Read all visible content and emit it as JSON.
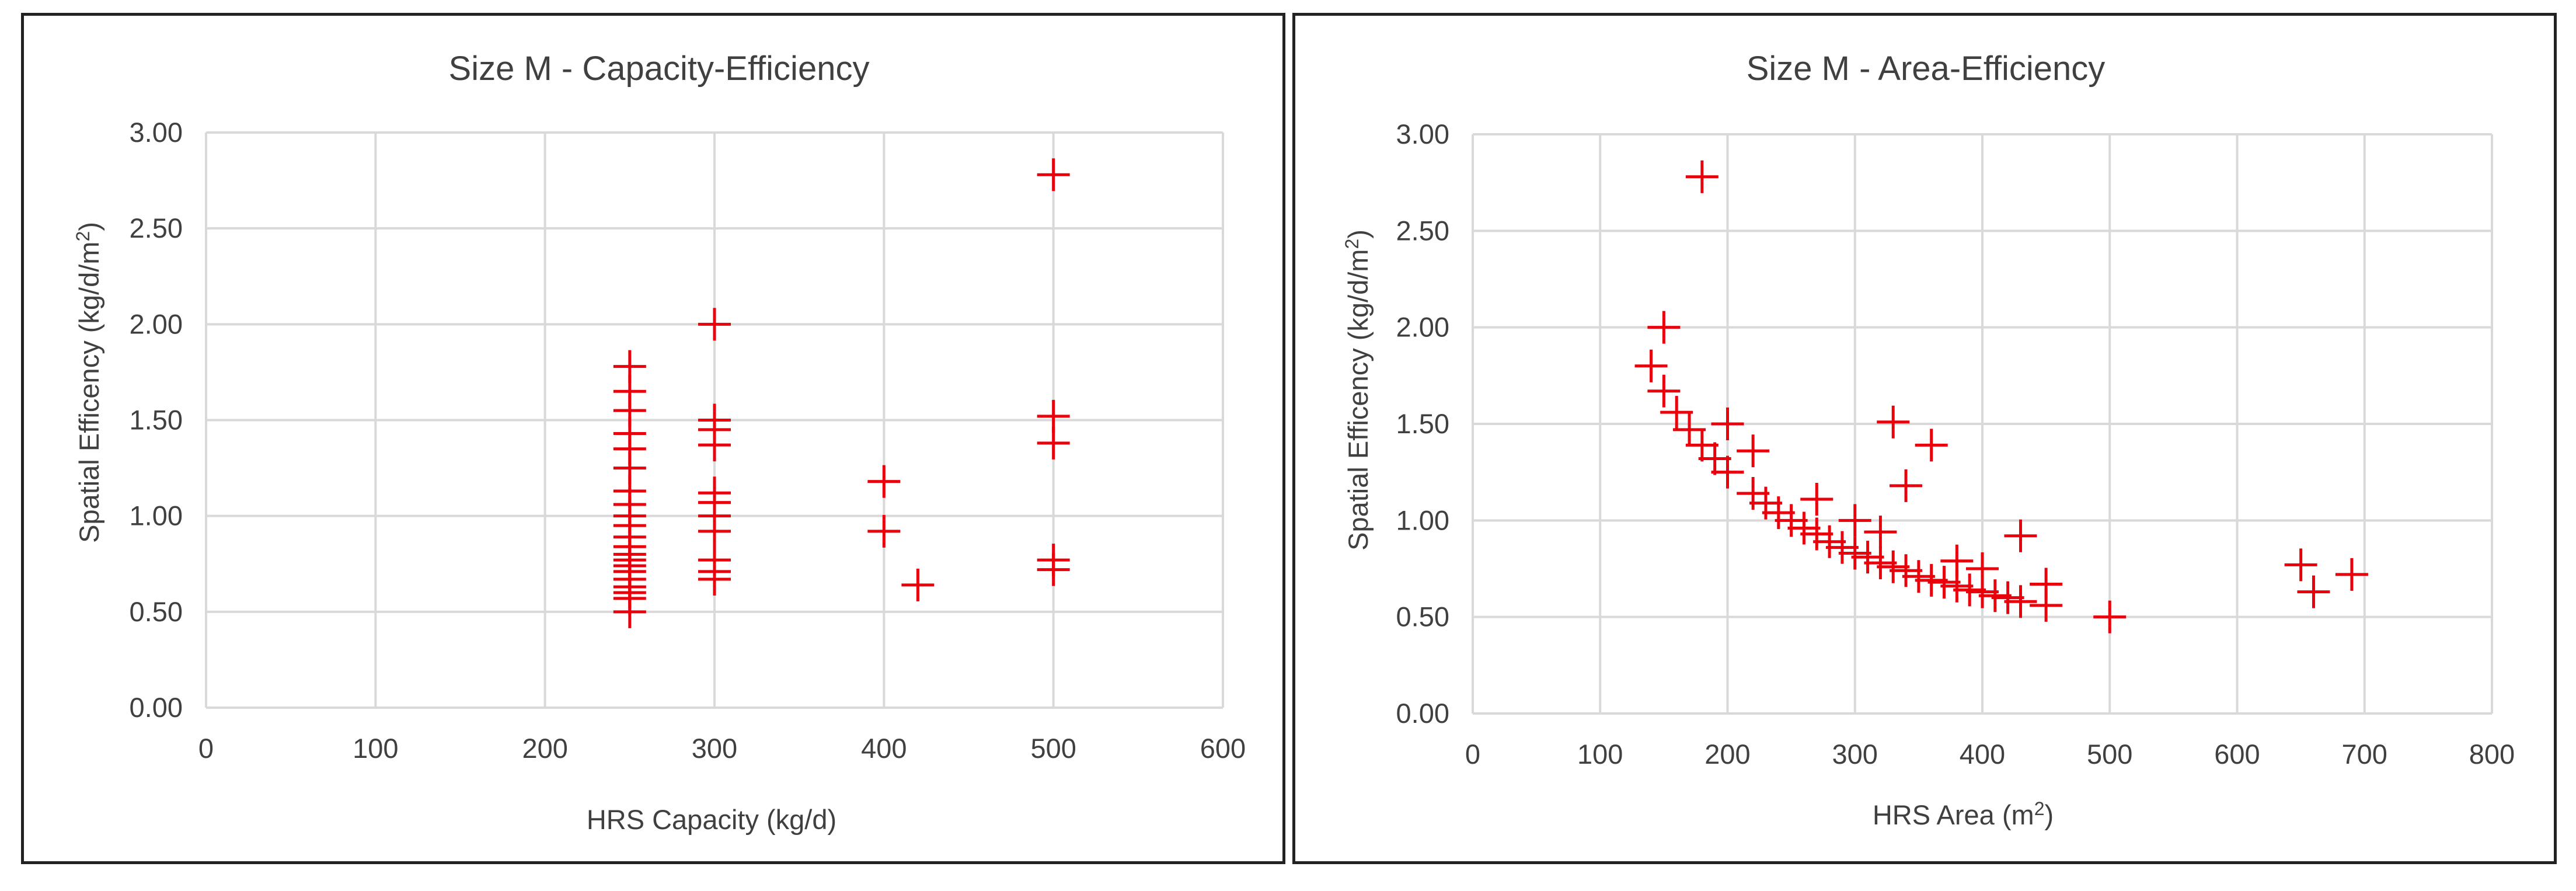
{
  "chart_data": [
    {
      "type": "scatter",
      "title": "Size M - Capacity-Efficiency",
      "xlabel": "HRS Capacity (kg/d)",
      "ylabel": {
        "main": "Spatial Efficency (kg/d/m",
        "sup": "2",
        "tail": ")"
      },
      "xlim": [
        0,
        600
      ],
      "ylim": [
        0,
        3
      ],
      "xticks": [
        "0",
        "100",
        "200",
        "300",
        "400",
        "500",
        "600"
      ],
      "yticks": [
        "0.00",
        "0.50",
        "1.00",
        "1.50",
        "2.00",
        "2.50",
        "3.00"
      ],
      "grid": true,
      "marker": "cross",
      "color": "#e8000b",
      "series": [
        {
          "points": [
            [
              250,
              1.78
            ],
            [
              250,
              1.65
            ],
            [
              250,
              1.55
            ],
            [
              250,
              1.43
            ],
            [
              250,
              1.35
            ],
            [
              250,
              1.25
            ],
            [
              250,
              1.13
            ],
            [
              250,
              1.06
            ],
            [
              250,
              1.0
            ],
            [
              250,
              0.95
            ],
            [
              250,
              0.89
            ],
            [
              250,
              0.84
            ],
            [
              250,
              0.8
            ],
            [
              250,
              0.77
            ],
            [
              250,
              0.74
            ],
            [
              250,
              0.71
            ],
            [
              250,
              0.67
            ],
            [
              250,
              0.63
            ],
            [
              250,
              0.6
            ],
            [
              250,
              0.57
            ],
            [
              250,
              0.5
            ],
            [
              300,
              2.0
            ],
            [
              300,
              1.5
            ],
            [
              300,
              1.45
            ],
            [
              300,
              1.37
            ],
            [
              300,
              1.12
            ],
            [
              300,
              1.07
            ],
            [
              300,
              1.0
            ],
            [
              300,
              0.92
            ],
            [
              300,
              0.77
            ],
            [
              300,
              0.71
            ],
            [
              300,
              0.67
            ],
            [
              400,
              1.18
            ],
            [
              400,
              0.92
            ],
            [
              420,
              0.64
            ],
            [
              500,
              2.78
            ],
            [
              500,
              1.52
            ],
            [
              500,
              1.38
            ],
            [
              500,
              0.77
            ],
            [
              500,
              0.72
            ]
          ]
        }
      ]
    },
    {
      "type": "scatter",
      "title": "Size M - Area-Efficiency",
      "xlabel": {
        "main": "HRS Area (m",
        "sup": "2",
        "tail": ")"
      },
      "ylabel": {
        "main": "Spatial Efficency (kg/d/m",
        "sup": "2",
        "tail": ")"
      },
      "xlim": [
        0,
        800
      ],
      "ylim": [
        0,
        3
      ],
      "xticks": [
        "0",
        "100",
        "200",
        "300",
        "400",
        "500",
        "600",
        "700",
        "800"
      ],
      "yticks": [
        "0.00",
        "0.50",
        "1.00",
        "1.50",
        "2.00",
        "2.50",
        "3.00"
      ],
      "grid": true,
      "marker": "cross",
      "color": "#e8000b",
      "series": [
        {
          "points": [
            [
              180,
              2.78
            ],
            [
              150,
              2.0
            ],
            [
              140,
              1.8
            ],
            [
              150,
              1.67
            ],
            [
              160,
              1.56
            ],
            [
              170,
              1.47
            ],
            [
              180,
              1.39
            ],
            [
              190,
              1.32
            ],
            [
              200,
              1.25
            ],
            [
              200,
              1.5
            ],
            [
              220,
              1.36
            ],
            [
              220,
              1.14
            ],
            [
              230,
              1.09
            ],
            [
              240,
              1.04
            ],
            [
              250,
              1.0
            ],
            [
              260,
              0.96
            ],
            [
              270,
              0.93
            ],
            [
              270,
              1.11
            ],
            [
              280,
              0.89
            ],
            [
              290,
              0.86
            ],
            [
              300,
              0.83
            ],
            [
              300,
              1.0
            ],
            [
              310,
              0.81
            ],
            [
              320,
              0.78
            ],
            [
              320,
              0.94
            ],
            [
              330,
              1.51
            ],
            [
              330,
              0.76
            ],
            [
              340,
              0.74
            ],
            [
              340,
              1.18
            ],
            [
              350,
              0.71
            ],
            [
              360,
              0.69
            ],
            [
              360,
              1.39
            ],
            [
              370,
              0.68
            ],
            [
              380,
              0.66
            ],
            [
              380,
              0.79
            ],
            [
              390,
              0.64
            ],
            [
              400,
              0.63
            ],
            [
              400,
              0.75
            ],
            [
              410,
              0.61
            ],
            [
              420,
              0.6
            ],
            [
              430,
              0.58
            ],
            [
              430,
              0.92
            ],
            [
              450,
              0.56
            ],
            [
              450,
              0.67
            ],
            [
              500,
              0.5
            ],
            [
              650,
              0.77
            ],
            [
              660,
              0.63
            ],
            [
              690,
              0.72
            ]
          ]
        }
      ]
    }
  ]
}
